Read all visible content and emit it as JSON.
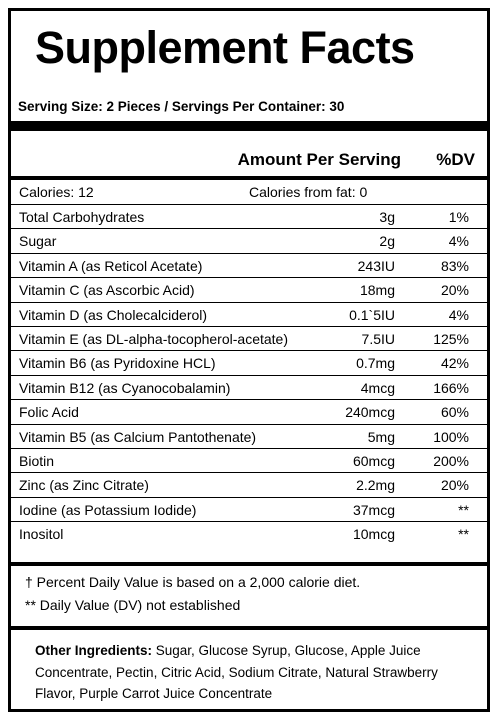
{
  "title": "Supplement Facts",
  "serving": "Serving Size: 2 Pieces / Servings Per Container: 30",
  "header": {
    "amount": "Amount Per Serving",
    "dv": "%DV"
  },
  "calories": {
    "left": "Calories: 12",
    "right": "Calories from fat: 0"
  },
  "nutrients": [
    {
      "name": "Total Carbohydrates",
      "amount": "3g",
      "dv": "1%"
    },
    {
      "name": "Sugar",
      "amount": "2g",
      "dv": "4%"
    },
    {
      "name": "Vitamin A (as Reticol Acetate)",
      "amount": "243IU",
      "dv": "83%"
    },
    {
      "name": "Vitamin C (as Ascorbic Acid)",
      "amount": "18mg",
      "dv": "20%"
    },
    {
      "name": "Vitamin D (as Cholecalciderol)",
      "amount": "0.1`5IU",
      "dv": "4%"
    },
    {
      "name": "Vitamin E (as DL-alpha-tocopherol-acetate)",
      "amount": "7.5IU",
      "dv": "125%"
    },
    {
      "name": "Vitamin B6 (as Pyridoxine HCL)",
      "amount": "0.7mg",
      "dv": "42%"
    },
    {
      "name": "Vitamin B12 (as Cyanocobalamin)",
      "amount": "4mcg",
      "dv": "166%"
    },
    {
      "name": "Folic Acid",
      "amount": "240mcg",
      "dv": "60%"
    },
    {
      "name": "Vitamin B5 (as Calcium Pantothenate)",
      "amount": "5mg",
      "dv": "100%"
    },
    {
      "name": "Biotin",
      "amount": "60mcg",
      "dv": "200%"
    },
    {
      "name": "Zinc (as Zinc Citrate)",
      "amount": "2.2mg",
      "dv": "20%"
    },
    {
      "name": "Iodine (as Potassium Iodide)",
      "amount": "37mcg",
      "dv": "**"
    },
    {
      "name": "Inositol",
      "amount": "10mcg",
      "dv": "**"
    }
  ],
  "footnotes": {
    "dagger": "† Percent Daily Value is based on a 2,000 calorie diet.",
    "stars": "** Daily Value (DV) not established"
  },
  "ingredients": {
    "label": "Other Ingredients:",
    "text": " Sugar, Glucose Syrup, Glucose, Apple Juice Concentrate, Pectin, Citric Acid, Sodium Citrate, Natural Strawberry Flavor, Purple Carrot Juice Concentrate"
  }
}
